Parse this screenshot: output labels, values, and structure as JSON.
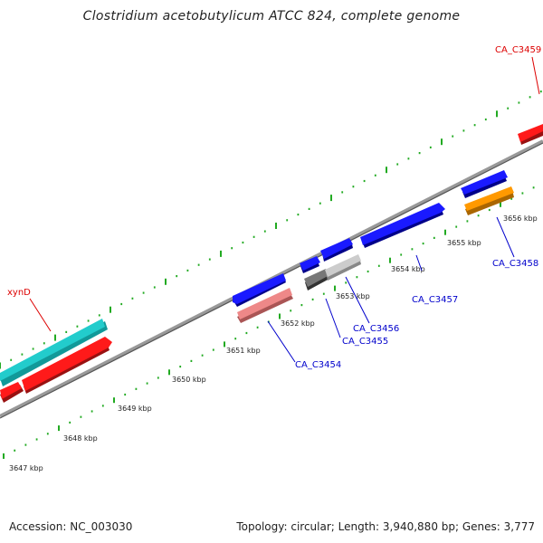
{
  "title": "Clostridium acetobutylicum ATCC 824, complete genome",
  "footer": {
    "accession": "Accession: NC_003030",
    "summary": "Topology: circular; Length: 3,940,880 bp; Genes: 3,777"
  },
  "scale_labels": [
    "3647 kbp",
    "3648 kbp",
    "3649 kbp",
    "3650 kbp",
    "3651 kbp",
    "3652 kbp",
    "3653 kbp",
    "3654 kbp",
    "3655 kbp",
    "3656 kbp"
  ],
  "gene_labels": {
    "xynD": "xynD",
    "ca3454": "CA_C3454",
    "ca3455": "CA_C3455",
    "ca3456": "CA_C3456",
    "ca3457": "CA_C3457",
    "ca3458": "CA_C3458",
    "ca3459": "CA_C3459"
  },
  "colors": {
    "forward_cds": "#1a1aff",
    "reverse_cds": "#1a1aff",
    "rna": "#ff0000",
    "highlight_teal": "#22cccc",
    "highlight_orange": "#ff9900",
    "highlight_pink": "#ee8888",
    "gray": "#777777",
    "light_gray": "#cccccc",
    "backbone": "#888888",
    "ticks": "#22aa22",
    "label_blue": "#0000cc",
    "label_red": "#dd0000"
  }
}
